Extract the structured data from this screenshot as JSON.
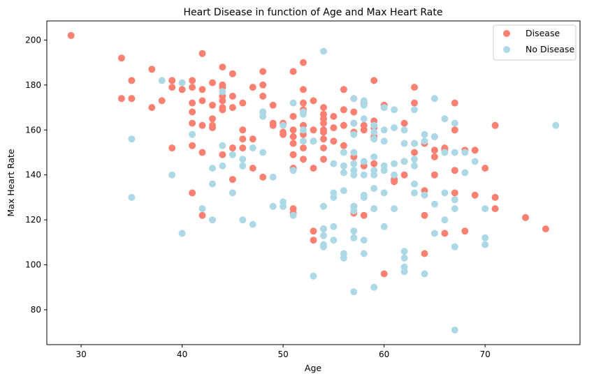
{
  "chart_data": {
    "type": "scatter",
    "title": "Heart Disease in function of Age and Max Heart Rate",
    "xlabel": "Age",
    "ylabel": "Max Heart Rate",
    "xlim": [
      26.6,
      79.4
    ],
    "ylim": [
      64.5,
      208.5
    ],
    "xticks": [
      30,
      40,
      50,
      60,
      70
    ],
    "yticks": [
      80,
      100,
      120,
      140,
      160,
      180,
      200
    ],
    "legend": {
      "position": "top-right"
    },
    "series": [
      {
        "name": "Disease",
        "color": "#fa8072",
        "points": [
          [
            29,
            202
          ],
          [
            34,
            192
          ],
          [
            34,
            174
          ],
          [
            35,
            182
          ],
          [
            35,
            174
          ],
          [
            37,
            187
          ],
          [
            37,
            170
          ],
          [
            38,
            173
          ],
          [
            39,
            182
          ],
          [
            39,
            179
          ],
          [
            39,
            152
          ],
          [
            40,
            178
          ],
          [
            41,
            182
          ],
          [
            41,
            179
          ],
          [
            41,
            172
          ],
          [
            41,
            168
          ],
          [
            41,
            163
          ],
          [
            41,
            153
          ],
          [
            41,
            132
          ],
          [
            42,
            194
          ],
          [
            42,
            178
          ],
          [
            42,
            173
          ],
          [
            42,
            162
          ],
          [
            42,
            150
          ],
          [
            42,
            122
          ],
          [
            43,
            181
          ],
          [
            43,
            171
          ],
          [
            43,
            165
          ],
          [
            43,
            162
          ],
          [
            43,
            161
          ],
          [
            44,
            188
          ],
          [
            44,
            180
          ],
          [
            44,
            179
          ],
          [
            44,
            175
          ],
          [
            44,
            173
          ],
          [
            44,
            170
          ],
          [
            44,
            169
          ],
          [
            44,
            149
          ],
          [
            45,
            185
          ],
          [
            45,
            175
          ],
          [
            45,
            170
          ],
          [
            45,
            152
          ],
          [
            45,
            138
          ],
          [
            46,
            172
          ],
          [
            46,
            160
          ],
          [
            46,
            156
          ],
          [
            46,
            152
          ],
          [
            47,
            179
          ],
          [
            47,
            156
          ],
          [
            47,
            143
          ],
          [
            48,
            186
          ],
          [
            48,
            180
          ],
          [
            48,
            175
          ],
          [
            48,
            168
          ],
          [
            48,
            139
          ],
          [
            49,
            171
          ],
          [
            49,
            163
          ],
          [
            49,
            162
          ],
          [
            50,
            163
          ],
          [
            50,
            159
          ],
          [
            50,
            158
          ],
          [
            51,
            186
          ],
          [
            51,
            166
          ],
          [
            51,
            160
          ],
          [
            51,
            157
          ],
          [
            51,
            154
          ],
          [
            51,
            149
          ],
          [
            51,
            143
          ],
          [
            51,
            125
          ],
          [
            51,
            123
          ],
          [
            52,
            190
          ],
          [
            52,
            178
          ],
          [
            52,
            172
          ],
          [
            52,
            169
          ],
          [
            52,
            162
          ],
          [
            52,
            158
          ],
          [
            52,
            152
          ],
          [
            52,
            147
          ],
          [
            53,
            173
          ],
          [
            53,
            160
          ],
          [
            53,
            155
          ],
          [
            53,
            143
          ],
          [
            53,
            115
          ],
          [
            53,
            111
          ],
          [
            54,
            170
          ],
          [
            54,
            167
          ],
          [
            54,
            165
          ],
          [
            54,
            163
          ],
          [
            54,
            160
          ],
          [
            54,
            159
          ],
          [
            54,
            156
          ],
          [
            54,
            152
          ],
          [
            54,
            147
          ],
          [
            54,
            116
          ],
          [
            55,
            166
          ],
          [
            55,
            161
          ],
          [
            55,
            155
          ],
          [
            56,
            178
          ],
          [
            56,
            169
          ],
          [
            56,
            162
          ],
          [
            56,
            153
          ],
          [
            57,
            174
          ],
          [
            57,
            168
          ],
          [
            57,
            163
          ],
          [
            57,
            159
          ],
          [
            57,
            148
          ],
          [
            57,
            126
          ],
          [
            57,
            123
          ],
          [
            58,
            172
          ],
          [
            58,
            162
          ],
          [
            58,
            160
          ],
          [
            58,
            144
          ],
          [
            58,
            122
          ],
          [
            59,
            182
          ],
          [
            59,
            164
          ],
          [
            59,
            161
          ],
          [
            59,
            157
          ],
          [
            59,
            145
          ],
          [
            60,
            171
          ],
          [
            60,
            96
          ],
          [
            61,
            138
          ],
          [
            61,
            137
          ],
          [
            62,
            163
          ],
          [
            62,
            146
          ],
          [
            62,
            140
          ],
          [
            63,
            179
          ],
          [
            63,
            172
          ],
          [
            63,
            154
          ],
          [
            63,
            150
          ],
          [
            64,
            154
          ],
          [
            64,
            133
          ],
          [
            64,
            122
          ],
          [
            64,
            105
          ],
          [
            65,
            157
          ],
          [
            65,
            151
          ],
          [
            65,
            140
          ],
          [
            65,
            148
          ],
          [
            66,
            152
          ],
          [
            66,
            151
          ],
          [
            66,
            114
          ],
          [
            67,
            172
          ],
          [
            67,
            160
          ],
          [
            67,
            142
          ],
          [
            67,
            132
          ],
          [
            68,
            151
          ],
          [
            68,
            115
          ],
          [
            69,
            151
          ],
          [
            69,
            131
          ],
          [
            70,
            143
          ],
          [
            71,
            162
          ],
          [
            71,
            130
          ],
          [
            71,
            125
          ],
          [
            74,
            121
          ],
          [
            76,
            116
          ]
        ]
      },
      {
        "name": "No Disease",
        "color": "#add8e6",
        "points": [
          [
            35,
            156
          ],
          [
            35,
            130
          ],
          [
            38,
            182
          ],
          [
            39,
            140
          ],
          [
            40,
            181
          ],
          [
            40,
            114
          ],
          [
            41,
            158
          ],
          [
            42,
            125
          ],
          [
            43,
            143
          ],
          [
            43,
            136
          ],
          [
            43,
            120
          ],
          [
            44,
            177
          ],
          [
            44,
            153
          ],
          [
            44,
            144
          ],
          [
            45,
            149
          ],
          [
            45,
            132
          ],
          [
            46,
            147
          ],
          [
            46,
            144
          ],
          [
            46,
            120
          ],
          [
            47,
            152
          ],
          [
            47,
            118
          ],
          [
            48,
            168
          ],
          [
            48,
            166
          ],
          [
            48,
            150
          ],
          [
            49,
            139
          ],
          [
            49,
            126
          ],
          [
            50,
            162
          ],
          [
            50,
            128
          ],
          [
            50,
            126
          ],
          [
            51,
            172
          ],
          [
            51,
            142
          ],
          [
            51,
            122
          ],
          [
            52,
            167
          ],
          [
            52,
            160
          ],
          [
            52,
            155
          ],
          [
            52,
            168
          ],
          [
            53,
            155
          ],
          [
            53,
            95
          ],
          [
            54,
            195
          ],
          [
            54,
            126
          ],
          [
            54,
            116
          ],
          [
            54,
            113
          ],
          [
            54,
            109
          ],
          [
            54,
            108
          ],
          [
            55,
            145
          ],
          [
            55,
            132
          ],
          [
            55,
            130
          ],
          [
            55,
            117
          ],
          [
            55,
            111
          ],
          [
            56,
            150
          ],
          [
            56,
            144
          ],
          [
            56,
            141
          ],
          [
            56,
            133
          ],
          [
            56,
            105
          ],
          [
            56,
            103
          ],
          [
            57,
            174
          ],
          [
            57,
            163
          ],
          [
            57,
            158
          ],
          [
            57,
            150
          ],
          [
            57,
            145
          ],
          [
            57,
            142
          ],
          [
            57,
            140
          ],
          [
            57,
            126
          ],
          [
            57,
            124
          ],
          [
            57,
            115
          ],
          [
            57,
            112
          ],
          [
            57,
            88
          ],
          [
            58,
            173
          ],
          [
            58,
            171
          ],
          [
            58,
            165
          ],
          [
            58,
            146
          ],
          [
            58,
            140
          ],
          [
            58,
            131
          ],
          [
            58,
            130
          ],
          [
            58,
            111
          ],
          [
            58,
            105
          ],
          [
            59,
            162
          ],
          [
            59,
            159
          ],
          [
            59,
            156
          ],
          [
            59,
            148
          ],
          [
            59,
            142
          ],
          [
            59,
            140
          ],
          [
            59,
            134
          ],
          [
            59,
            125
          ],
          [
            59,
            90
          ],
          [
            60,
            170
          ],
          [
            60,
            160
          ],
          [
            60,
            155
          ],
          [
            60,
            144
          ],
          [
            60,
            142
          ],
          [
            60,
            132
          ],
          [
            60,
            117
          ],
          [
            61,
            169
          ],
          [
            61,
            161
          ],
          [
            61,
            145
          ],
          [
            61,
            140
          ],
          [
            61,
            125
          ],
          [
            62,
            160
          ],
          [
            62,
            154
          ],
          [
            62,
            146
          ],
          [
            62,
            106
          ],
          [
            62,
            103
          ],
          [
            62,
            99
          ],
          [
            62,
            97
          ],
          [
            63,
            169
          ],
          [
            63,
            154
          ],
          [
            63,
            147
          ],
          [
            63,
            144
          ],
          [
            63,
            136
          ],
          [
            63,
            132
          ],
          [
            64,
            158
          ],
          [
            64,
            155
          ],
          [
            64,
            131
          ],
          [
            64,
            96
          ],
          [
            65,
            174
          ],
          [
            65,
            157
          ],
          [
            65,
            127
          ],
          [
            65,
            114
          ],
          [
            66,
            165
          ],
          [
            66,
            150
          ],
          [
            66,
            132
          ],
          [
            66,
            120
          ],
          [
            67,
            163
          ],
          [
            67,
            150
          ],
          [
            67,
            129
          ],
          [
            67,
            125
          ],
          [
            67,
            108
          ],
          [
            67,
            71
          ],
          [
            68,
            141
          ],
          [
            68,
            150
          ],
          [
            69,
            146
          ],
          [
            70,
            125
          ],
          [
            70,
            112
          ],
          [
            70,
            109
          ],
          [
            77,
            162
          ]
        ]
      }
    ]
  }
}
